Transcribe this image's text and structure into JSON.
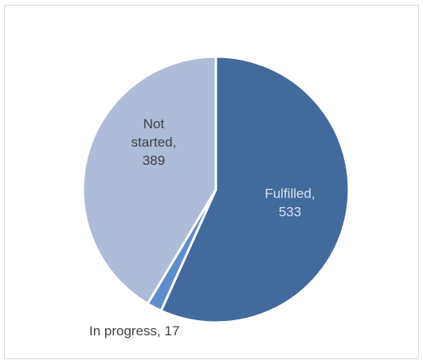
{
  "chart_data": {
    "type": "pie",
    "title": "",
    "slices": [
      {
        "label": "Fulfilled",
        "value": 533,
        "color": "#426a9c",
        "text_color": "#d9e2f0",
        "label_lines": [
          "Fulfilled,",
          "533"
        ]
      },
      {
        "label": "In progress",
        "value": 17,
        "color": "#5f8ccc",
        "text_color": "#404040",
        "label_lines": [
          "In progress, 17"
        ]
      },
      {
        "label": "Not started",
        "value": 389,
        "color": "#adbcd8",
        "text_color": "#404040",
        "label_lines": [
          "Not",
          "started,",
          "389"
        ]
      }
    ],
    "start_angle_deg": 0,
    "direction": "clockwise",
    "legend": "none",
    "data_labels": "category and value"
  }
}
